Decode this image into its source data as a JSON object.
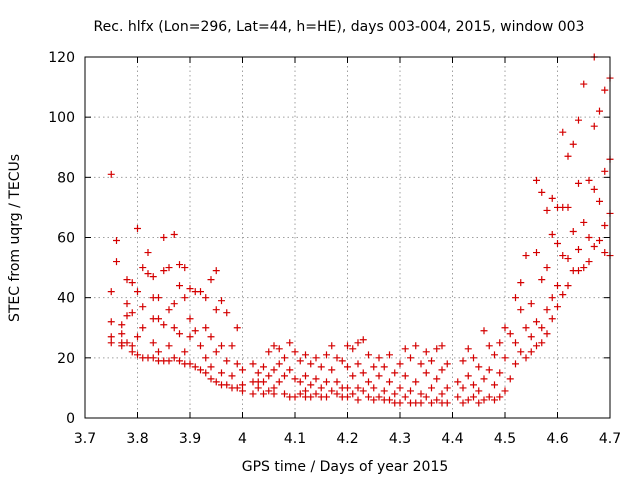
{
  "chart_data": {
    "type": "scatter",
    "title": "Rec. hlfx (Lon=296, Lat=44, h=HE), days 003-004, 2015, window 003",
    "xlabel": "GPS time / Days of year 2015",
    "ylabel": "STEC from uqrg / TECUs",
    "xlim": [
      3.7,
      4.7
    ],
    "ylim": [
      0,
      120
    ],
    "xticks": [
      "3.7",
      "3.8",
      "3.9",
      "4",
      "4.1",
      "4.2",
      "4.3",
      "4.4",
      "4.5",
      "4.6",
      "4.7"
    ],
    "yticks": [
      "0",
      "20",
      "40",
      "60",
      "80",
      "100",
      "120"
    ],
    "grid": true,
    "marker": "+",
    "color": "#d40000",
    "points": [
      [
        3.75,
        81
      ],
      [
        3.75,
        42
      ],
      [
        3.75,
        32
      ],
      [
        3.75,
        27
      ],
      [
        3.75,
        25
      ],
      [
        3.76,
        59
      ],
      [
        3.76,
        52
      ],
      [
        3.77,
        31
      ],
      [
        3.77,
        28
      ],
      [
        3.77,
        25
      ],
      [
        3.77,
        24
      ],
      [
        3.78,
        46
      ],
      [
        3.78,
        38
      ],
      [
        3.78,
        34
      ],
      [
        3.78,
        25
      ],
      [
        3.79,
        45
      ],
      [
        3.79,
        35
      ],
      [
        3.79,
        24
      ],
      [
        3.79,
        22
      ],
      [
        3.8,
        63
      ],
      [
        3.8,
        42
      ],
      [
        3.8,
        27
      ],
      [
        3.8,
        21
      ],
      [
        3.81,
        50
      ],
      [
        3.81,
        37
      ],
      [
        3.81,
        30
      ],
      [
        3.81,
        20
      ],
      [
        3.82,
        55
      ],
      [
        3.82,
        48
      ],
      [
        3.82,
        20
      ],
      [
        3.83,
        47
      ],
      [
        3.83,
        40
      ],
      [
        3.83,
        33
      ],
      [
        3.83,
        25
      ],
      [
        3.83,
        20
      ],
      [
        3.84,
        40
      ],
      [
        3.84,
        33
      ],
      [
        3.84,
        22
      ],
      [
        3.84,
        19
      ],
      [
        3.85,
        60
      ],
      [
        3.85,
        49
      ],
      [
        3.85,
        31
      ],
      [
        3.85,
        19
      ],
      [
        3.86,
        50
      ],
      [
        3.86,
        36
      ],
      [
        3.86,
        24
      ],
      [
        3.86,
        19
      ],
      [
        3.87,
        61
      ],
      [
        3.87,
        38
      ],
      [
        3.87,
        30
      ],
      [
        3.87,
        20
      ],
      [
        3.88,
        51
      ],
      [
        3.88,
        44
      ],
      [
        3.88,
        28
      ],
      [
        3.88,
        19
      ],
      [
        3.89,
        50
      ],
      [
        3.89,
        40
      ],
      [
        3.89,
        22
      ],
      [
        3.89,
        18
      ],
      [
        3.9,
        43
      ],
      [
        3.9,
        33
      ],
      [
        3.9,
        27
      ],
      [
        3.9,
        18
      ],
      [
        3.91,
        42
      ],
      [
        3.91,
        29
      ],
      [
        3.91,
        17
      ],
      [
        3.92,
        42
      ],
      [
        3.92,
        24
      ],
      [
        3.92,
        16
      ],
      [
        3.93,
        40
      ],
      [
        3.93,
        30
      ],
      [
        3.93,
        20
      ],
      [
        3.93,
        15
      ],
      [
        3.94,
        46
      ],
      [
        3.94,
        27
      ],
      [
        3.94,
        17
      ],
      [
        3.94,
        13
      ],
      [
        3.95,
        49
      ],
      [
        3.95,
        36
      ],
      [
        3.95,
        22
      ],
      [
        3.95,
        12
      ],
      [
        3.96,
        39
      ],
      [
        3.96,
        24
      ],
      [
        3.96,
        15
      ],
      [
        3.96,
        11
      ],
      [
        3.97,
        35
      ],
      [
        3.97,
        19
      ],
      [
        3.97,
        11
      ],
      [
        3.98,
        24
      ],
      [
        3.98,
        14
      ],
      [
        3.98,
        10
      ],
      [
        3.99,
        30
      ],
      [
        3.99,
        18
      ],
      [
        3.99,
        10
      ],
      [
        4.0,
        16
      ],
      [
        4.0,
        11
      ],
      [
        4.0,
        9
      ],
      [
        4.02,
        18
      ],
      [
        4.02,
        12
      ],
      [
        4.02,
        8
      ],
      [
        4.03,
        15
      ],
      [
        4.03,
        12
      ],
      [
        4.03,
        10
      ],
      [
        4.04,
        17
      ],
      [
        4.04,
        12
      ],
      [
        4.04,
        8
      ],
      [
        4.05,
        22
      ],
      [
        4.05,
        14
      ],
      [
        4.05,
        9
      ],
      [
        4.06,
        24
      ],
      [
        4.06,
        16
      ],
      [
        4.06,
        10
      ],
      [
        4.06,
        8
      ],
      [
        4.07,
        23
      ],
      [
        4.07,
        18
      ],
      [
        4.07,
        12
      ],
      [
        4.08,
        20
      ],
      [
        4.08,
        14
      ],
      [
        4.08,
        8
      ],
      [
        4.09,
        25
      ],
      [
        4.09,
        16
      ],
      [
        4.09,
        7
      ],
      [
        4.1,
        22
      ],
      [
        4.1,
        13
      ],
      [
        4.1,
        7
      ],
      [
        4.11,
        19
      ],
      [
        4.11,
        12
      ],
      [
        4.11,
        8
      ],
      [
        4.12,
        21
      ],
      [
        4.12,
        14
      ],
      [
        4.12,
        9
      ],
      [
        4.12,
        7
      ],
      [
        4.13,
        18
      ],
      [
        4.13,
        11
      ],
      [
        4.13,
        7
      ],
      [
        4.14,
        20
      ],
      [
        4.14,
        13
      ],
      [
        4.14,
        8
      ],
      [
        4.15,
        17
      ],
      [
        4.15,
        10
      ],
      [
        4.15,
        7
      ],
      [
        4.16,
        21
      ],
      [
        4.16,
        12
      ],
      [
        4.16,
        7
      ],
      [
        4.17,
        24
      ],
      [
        4.17,
        16
      ],
      [
        4.17,
        9
      ],
      [
        4.18,
        20
      ],
      [
        4.18,
        12
      ],
      [
        4.18,
        8
      ],
      [
        4.19,
        19
      ],
      [
        4.19,
        10
      ],
      [
        4.19,
        7
      ],
      [
        4.2,
        24
      ],
      [
        4.2,
        17
      ],
      [
        4.2,
        10
      ],
      [
        4.2,
        7
      ],
      [
        4.21,
        23
      ],
      [
        4.21,
        14
      ],
      [
        4.21,
        8
      ],
      [
        4.22,
        25
      ],
      [
        4.22,
        18
      ],
      [
        4.22,
        10
      ],
      [
        4.22,
        6
      ],
      [
        4.23,
        26
      ],
      [
        4.23,
        15
      ],
      [
        4.23,
        9
      ],
      [
        4.24,
        21
      ],
      [
        4.24,
        12
      ],
      [
        4.24,
        7
      ],
      [
        4.25,
        17
      ],
      [
        4.25,
        10
      ],
      [
        4.25,
        6
      ],
      [
        4.26,
        20
      ],
      [
        4.26,
        14
      ],
      [
        4.26,
        7
      ],
      [
        4.27,
        17
      ],
      [
        4.27,
        9
      ],
      [
        4.27,
        6
      ],
      [
        4.28,
        21
      ],
      [
        4.28,
        12
      ],
      [
        4.28,
        6
      ],
      [
        4.29,
        15
      ],
      [
        4.29,
        8
      ],
      [
        4.29,
        5
      ],
      [
        4.3,
        18
      ],
      [
        4.3,
        10
      ],
      [
        4.3,
        5
      ],
      [
        4.31,
        23
      ],
      [
        4.31,
        14
      ],
      [
        4.31,
        7
      ],
      [
        4.32,
        20
      ],
      [
        4.32,
        9
      ],
      [
        4.32,
        5
      ],
      [
        4.33,
        24
      ],
      [
        4.33,
        12
      ],
      [
        4.33,
        5
      ],
      [
        4.34,
        18
      ],
      [
        4.34,
        8
      ],
      [
        4.34,
        5
      ],
      [
        4.35,
        22
      ],
      [
        4.35,
        15
      ],
      [
        4.35,
        7
      ],
      [
        4.36,
        19
      ],
      [
        4.36,
        10
      ],
      [
        4.36,
        5
      ],
      [
        4.37,
        23
      ],
      [
        4.37,
        13
      ],
      [
        4.37,
        6
      ],
      [
        4.38,
        24
      ],
      [
        4.38,
        16
      ],
      [
        4.38,
        8
      ],
      [
        4.38,
        5
      ],
      [
        4.39,
        18
      ],
      [
        4.39,
        10
      ],
      [
        4.39,
        5
      ],
      [
        4.41,
        12
      ],
      [
        4.41,
        7
      ],
      [
        4.42,
        19
      ],
      [
        4.42,
        10
      ],
      [
        4.42,
        5
      ],
      [
        4.43,
        23
      ],
      [
        4.43,
        14
      ],
      [
        4.43,
        6
      ],
      [
        4.44,
        20
      ],
      [
        4.44,
        11
      ],
      [
        4.44,
        7
      ],
      [
        4.45,
        17
      ],
      [
        4.45,
        9
      ],
      [
        4.45,
        5
      ],
      [
        4.46,
        29
      ],
      [
        4.46,
        13
      ],
      [
        4.46,
        6
      ],
      [
        4.47,
        24
      ],
      [
        4.47,
        16
      ],
      [
        4.47,
        7
      ],
      [
        4.48,
        21
      ],
      [
        4.48,
        11
      ],
      [
        4.48,
        6
      ],
      [
        4.49,
        25
      ],
      [
        4.49,
        15
      ],
      [
        4.49,
        7
      ],
      [
        4.5,
        30
      ],
      [
        4.5,
        20
      ],
      [
        4.5,
        9
      ],
      [
        4.51,
        28
      ],
      [
        4.51,
        13
      ],
      [
        4.52,
        40
      ],
      [
        4.52,
        25
      ],
      [
        4.52,
        18
      ],
      [
        4.53,
        45
      ],
      [
        4.53,
        36
      ],
      [
        4.53,
        22
      ],
      [
        4.54,
        54
      ],
      [
        4.54,
        30
      ],
      [
        4.54,
        20
      ],
      [
        4.55,
        38
      ],
      [
        4.55,
        27
      ],
      [
        4.55,
        22
      ],
      [
        4.56,
        79
      ],
      [
        4.56,
        55
      ],
      [
        4.56,
        32
      ],
      [
        4.56,
        24
      ],
      [
        4.57,
        75
      ],
      [
        4.57,
        46
      ],
      [
        4.57,
        30
      ],
      [
        4.57,
        25
      ],
      [
        4.58,
        69
      ],
      [
        4.58,
        50
      ],
      [
        4.58,
        36
      ],
      [
        4.58,
        28
      ],
      [
        4.59,
        73
      ],
      [
        4.59,
        61
      ],
      [
        4.59,
        40
      ],
      [
        4.59,
        33
      ],
      [
        4.6,
        70
      ],
      [
        4.6,
        58
      ],
      [
        4.6,
        44
      ],
      [
        4.6,
        37
      ],
      [
        4.61,
        95
      ],
      [
        4.61,
        70
      ],
      [
        4.61,
        54
      ],
      [
        4.61,
        41
      ],
      [
        4.62,
        87
      ],
      [
        4.62,
        70
      ],
      [
        4.62,
        53
      ],
      [
        4.62,
        44
      ],
      [
        4.63,
        91
      ],
      [
        4.63,
        62
      ],
      [
        4.63,
        49
      ],
      [
        4.64,
        99
      ],
      [
        4.64,
        78
      ],
      [
        4.64,
        56
      ],
      [
        4.64,
        49
      ],
      [
        4.65,
        111
      ],
      [
        4.65,
        65
      ],
      [
        4.65,
        50
      ],
      [
        4.66,
        79
      ],
      [
        4.66,
        60
      ],
      [
        4.66,
        52
      ],
      [
        4.67,
        120
      ],
      [
        4.67,
        97
      ],
      [
        4.67,
        76
      ],
      [
        4.67,
        57
      ],
      [
        4.68,
        102
      ],
      [
        4.68,
        72
      ],
      [
        4.68,
        59
      ],
      [
        4.69,
        109
      ],
      [
        4.69,
        82
      ],
      [
        4.69,
        64
      ],
      [
        4.69,
        55
      ],
      [
        4.7,
        113
      ],
      [
        4.7,
        86
      ],
      [
        4.7,
        68
      ],
      [
        4.7,
        54
      ]
    ]
  }
}
